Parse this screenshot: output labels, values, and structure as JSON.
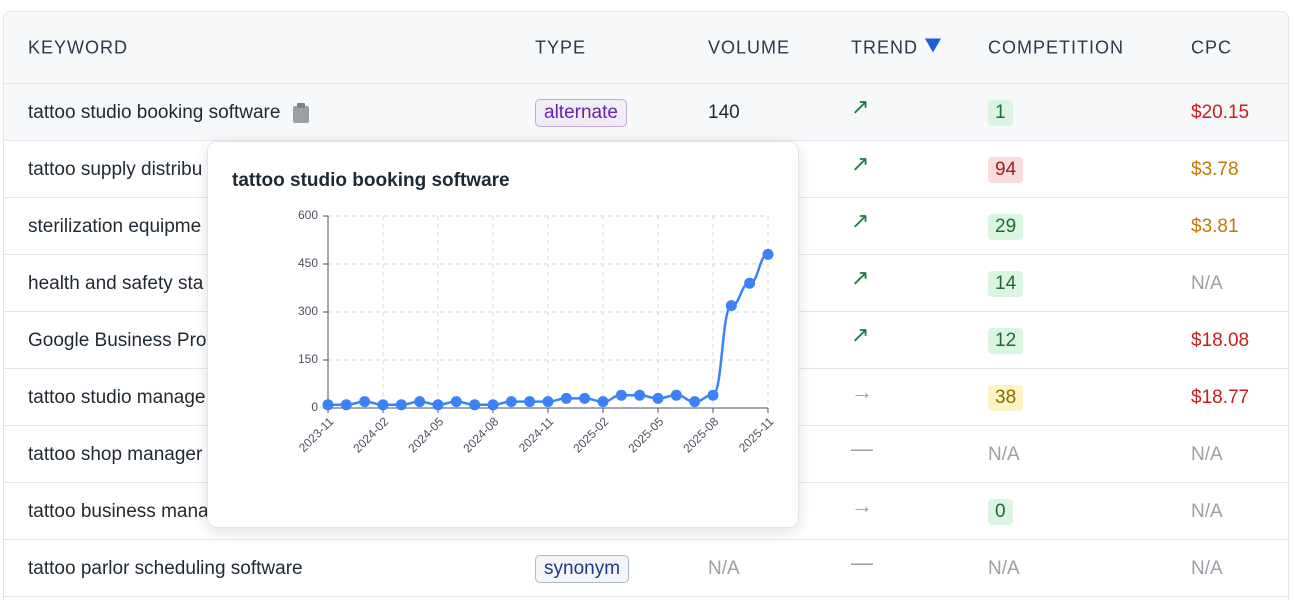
{
  "table": {
    "header": [
      "KEYWORD",
      "TYPE",
      "VOLUME",
      "TREND",
      "COMPETITION",
      "CPC"
    ],
    "rows": [
      {
        "keyword": "tattoo studio booking software",
        "type": "alternate",
        "type_color": "#6b21a8",
        "volume": 140,
        "trend": "↗",
        "trend_color": "#15803d",
        "competition": 1,
        "cpc": "$20.15",
        "cpc_color": "#c81e1e"
      },
      {
        "keyword": "tattoo supply distribu",
        "type": null,
        "type_color": null,
        "volume": null,
        "trend": "↗",
        "trend_color": "#15803d",
        "competition": 94,
        "cpc": "$3.78",
        "cpc_color": "#c27803"
      },
      {
        "keyword": "sterilization equipme",
        "type": null,
        "type_color": null,
        "volume": null,
        "trend": "↗",
        "trend_color": "#15803d",
        "competition": 29,
        "cpc": "$3.81",
        "cpc_color": "#c27803"
      },
      {
        "keyword": "health and safety sta",
        "type": null,
        "type_color": null,
        "volume": null,
        "trend": "↗",
        "trend_color": "#15803d",
        "competition": 14,
        "cpc": "N/A",
        "cpc_color": "#9aa0a6"
      },
      {
        "keyword": "Google Business Prof",
        "type": null,
        "type_color": null,
        "volume": null,
        "trend": "↗",
        "trend_color": "#15803d",
        "competition": 12,
        "cpc": "$18.08",
        "cpc_color": "#c81e1e"
      },
      {
        "keyword": "tattoo studio manage",
        "type": null,
        "type_color": null,
        "volume": null,
        "trend": "→",
        "trend_color": "#9aa0a6",
        "competition": 38,
        "cpc": "$18.77",
        "cpc_color": "#c81e1e"
      },
      {
        "keyword": "tattoo shop manager",
        "type": null,
        "type_color": null,
        "volume": null,
        "trend": "—",
        "trend_color": "#9aa0a6",
        "competition": "N/A",
        "cpc": "N/A",
        "cpc_color": "#9aa0a6"
      },
      {
        "keyword": "tattoo business mana",
        "type": null,
        "type_color": null,
        "volume": null,
        "trend": "→",
        "trend_color": "#9aa0a6",
        "competition": 0,
        "cpc": "N/A",
        "cpc_color": "#9aa0a6"
      },
      {
        "keyword": "tattoo parlor scheduling software",
        "type": "synonym",
        "type_color": "#1e3a8a",
        "volume": "N/A",
        "trend": "—",
        "trend_color": "#9aa0a6",
        "competition": "N/A",
        "cpc": "N/A",
        "cpc_color": "#9aa0a6"
      }
    ]
  },
  "chart_data": {
    "type": "line",
    "title": "tattoo studio booking software",
    "color": "#3b82f6",
    "categories": [
      "2023-11",
      null,
      null,
      "2024-02",
      null,
      null,
      "2024-05",
      null,
      null,
      "2024-08",
      null,
      null,
      "2024-11",
      null,
      null,
      "2025-02",
      null,
      null,
      "2025-05",
      null,
      null,
      "2025-08",
      null,
      null,
      "2025-11"
    ],
    "values": [
      10,
      10,
      20,
      10,
      10,
      20,
      10,
      20,
      10,
      10,
      20,
      20,
      20,
      30,
      30,
      20,
      40,
      40,
      30,
      40,
      20,
      40,
      320,
      390,
      480
    ],
    "ylim": [
      0,
      600
    ],
    "yticks": [
      0,
      150,
      300,
      450,
      600
    ],
    "grid": true
  }
}
